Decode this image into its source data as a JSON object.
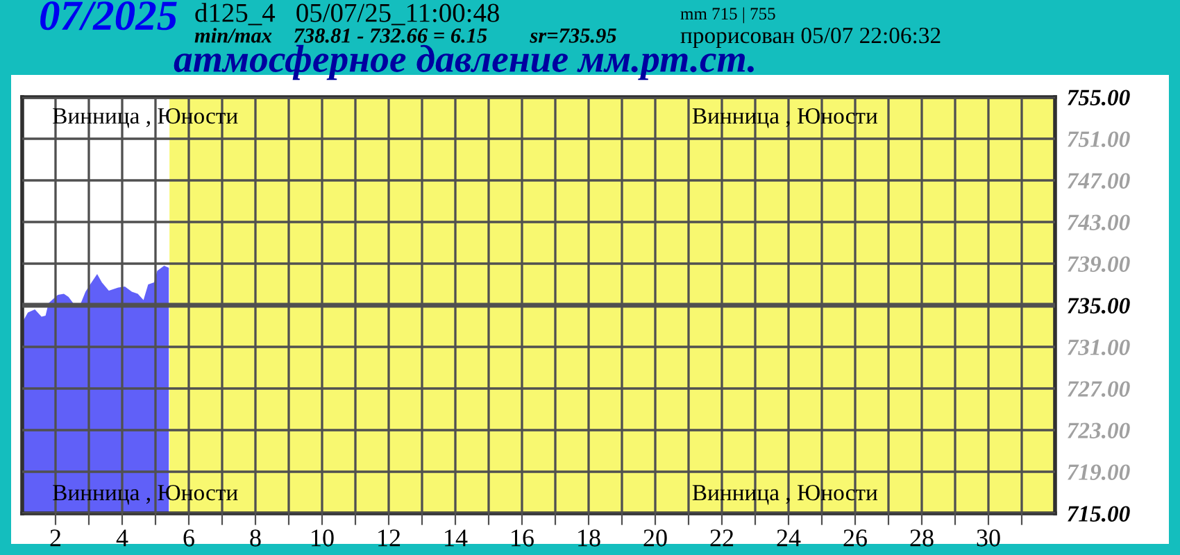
{
  "chart_data": {
    "type": "area",
    "title": "атмосферное давление мм.рт.ст.",
    "subtitle": "07/2025",
    "annotations": [
      "d125_4   05/07/25_11:00:48",
      "min/max    738.81 - 732.66 = 6.15        sr=735.95",
      "mm 715 | 755",
      "прорисован 05/07 22:06:32",
      "Винница , Юности",
      "Винница , Юности",
      "Винница , Юности",
      "Винница , Юности"
    ],
    "x": [
      1.0,
      1.03,
      1.17,
      1.38,
      1.58,
      1.7,
      1.79,
      2.07,
      2.25,
      2.39,
      2.53,
      2.76,
      2.9,
      3.04,
      3.25,
      3.39,
      3.6,
      3.88,
      4.08,
      4.29,
      4.47,
      4.64,
      4.78,
      4.96,
      5.05,
      5.26,
      5.4
    ],
    "series": [
      {
        "color": "#6060f8",
        "values": [
          733.2,
          733.5,
          734.3,
          734.6,
          733.9,
          734.0,
          735.2,
          736.0,
          736.1,
          735.8,
          735.2,
          735.2,
          736.3,
          737.0,
          738.0,
          737.2,
          736.4,
          736.7,
          736.8,
          736.3,
          736.1,
          735.5,
          737.0,
          737.2,
          738.3,
          738.8,
          738.6
        ]
      }
    ],
    "xlim": [
      1,
      32
    ],
    "xticks": [
      {
        "value": 2,
        "label": "2"
      },
      {
        "value": 3,
        "label": null
      },
      {
        "value": 4,
        "label": "4"
      },
      {
        "value": 5,
        "label": null
      },
      {
        "value": 6,
        "label": "6"
      },
      {
        "value": 7,
        "label": null
      },
      {
        "value": 8,
        "label": "8"
      },
      {
        "value": 9,
        "label": null
      },
      {
        "value": 10,
        "label": "10"
      },
      {
        "value": 11,
        "label": null
      },
      {
        "value": 12,
        "label": "12"
      },
      {
        "value": 13,
        "label": null
      },
      {
        "value": 14,
        "label": "14"
      },
      {
        "value": 15,
        "label": null
      },
      {
        "value": 16,
        "label": "16"
      },
      {
        "value": 17,
        "label": null
      },
      {
        "value": 18,
        "label": "18"
      },
      {
        "value": 19,
        "label": null
      },
      {
        "value": 20,
        "label": "20"
      },
      {
        "value": 21,
        "label": null
      },
      {
        "value": 22,
        "label": "22"
      },
      {
        "value": 23,
        "label": null
      },
      {
        "value": 24,
        "label": "24"
      },
      {
        "value": 25,
        "label": null
      },
      {
        "value": 26,
        "label": "26"
      },
      {
        "value": 27,
        "label": null
      },
      {
        "value": 28,
        "label": "28"
      },
      {
        "value": 29,
        "label": null
      },
      {
        "value": 30,
        "label": "30"
      },
      {
        "value": 31,
        "label": null
      }
    ],
    "ylim": [
      715,
      755
    ],
    "yticks": [
      {
        "value": 715,
        "label": "715.00"
      },
      {
        "value": 719,
        "label": "719.00"
      },
      {
        "value": 723,
        "label": "723.00"
      },
      {
        "value": 727,
        "label": "727.00"
      },
      {
        "value": 731,
        "label": "731.00"
      },
      {
        "value": 735,
        "label": "735.00"
      },
      {
        "value": 739,
        "label": "739.00"
      },
      {
        "value": 743,
        "label": "743.00"
      },
      {
        "value": 747,
        "label": "747.00"
      },
      {
        "value": 751,
        "label": "751.00"
      },
      {
        "value": 755,
        "label": "755.00"
      }
    ],
    "ref_lines": [
      {
        "axis": "y",
        "value": 735,
        "color": "#505050"
      }
    ],
    "bands": [
      {
        "axis": "x",
        "from": 5.42,
        "to": 32,
        "color": "#f8f870"
      }
    ],
    "grid": true
  }
}
